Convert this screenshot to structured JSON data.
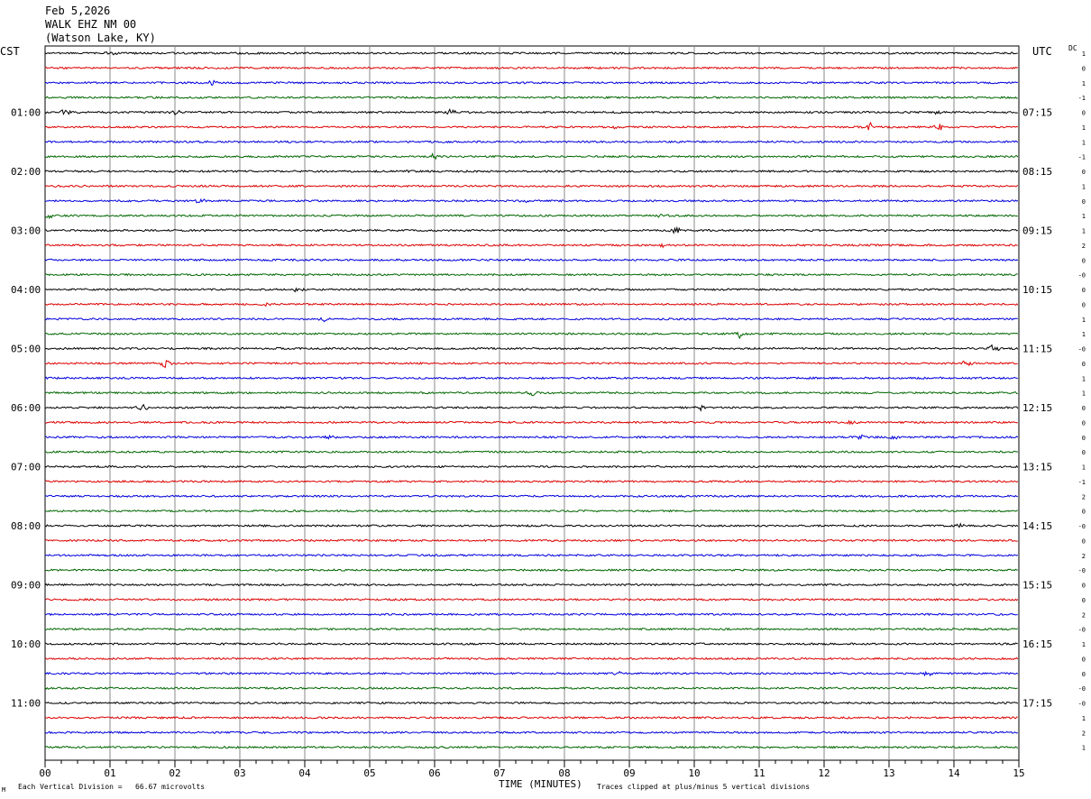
{
  "header": {
    "date": "Feb 5,2026",
    "station": "WALK EHZ NM 00",
    "location": "(Watson Lake, KY)"
  },
  "left_timezone": "CST",
  "right_timezone": "UTC",
  "dc_label": "DC",
  "footer": {
    "scale_note": "Each Vertical Division =   66.67 microvolts",
    "xlabel": "TIME (MINUTES)",
    "clip_note": "Traces clipped at plus/minus 5 vertical divisions",
    "corner_mark": "M"
  },
  "colors": {
    "trace_cycle": [
      "#000000",
      "#dd0000",
      "#0000dd",
      "#006600"
    ],
    "grid": "#888888",
    "frame": "#000000"
  },
  "chart_data": {
    "type": "line",
    "title": "",
    "xlabel": "TIME (MINUTES)",
    "ylabel": "",
    "xlim": [
      0,
      15
    ],
    "x_ticks": [
      "00",
      "01",
      "02",
      "03",
      "04",
      "05",
      "06",
      "07",
      "08",
      "09",
      "10",
      "11",
      "12",
      "13",
      "14",
      "15"
    ],
    "rows": 48,
    "minor_ticks_per_minute": 4,
    "left_hour_labels": [
      {
        "row": 4,
        "label": "01:00"
      },
      {
        "row": 8,
        "label": "02:00"
      },
      {
        "row": 12,
        "label": "03:00"
      },
      {
        "row": 16,
        "label": "04:00"
      },
      {
        "row": 20,
        "label": "05:00"
      },
      {
        "row": 24,
        "label": "06:00"
      },
      {
        "row": 28,
        "label": "07:00"
      },
      {
        "row": 32,
        "label": "08:00"
      },
      {
        "row": 36,
        "label": "09:00"
      },
      {
        "row": 40,
        "label": "10:00"
      },
      {
        "row": 44,
        "label": "11:00"
      }
    ],
    "right_hour_labels": [
      {
        "row": 4,
        "label": "07:15"
      },
      {
        "row": 8,
        "label": "08:15"
      },
      {
        "row": 12,
        "label": "09:15"
      },
      {
        "row": 16,
        "label": "10:15"
      },
      {
        "row": 20,
        "label": "11:15"
      },
      {
        "row": 24,
        "label": "12:15"
      },
      {
        "row": 28,
        "label": "13:15"
      },
      {
        "row": 32,
        "label": "14:15"
      },
      {
        "row": 36,
        "label": "15:15"
      },
      {
        "row": 40,
        "label": "16:15"
      },
      {
        "row": 44,
        "label": "17:15"
      }
    ],
    "dc_offsets": [
      "1",
      "0",
      "1",
      "-1",
      "0",
      "1",
      "1",
      "-1",
      "0",
      "1",
      "0",
      "1",
      "1",
      "2",
      "0",
      "-0",
      "0",
      "0",
      "1",
      "1",
      "-0",
      "0",
      "1",
      "1",
      "0",
      "0",
      "0",
      "0",
      "1",
      "-1",
      "2",
      "0",
      "-0",
      "0",
      "2",
      "-0",
      "0",
      "0",
      "2",
      "-0",
      "1",
      "0",
      "0",
      "-0",
      "-0",
      "1",
      "2",
      "1"
    ],
    "events": [
      {
        "row": 0,
        "minute": 1.0,
        "amp": 2.5
      },
      {
        "row": 2,
        "minute": 2.6,
        "amp": 3.5
      },
      {
        "row": 4,
        "minute": 0.3,
        "amp": 3.5
      },
      {
        "row": 4,
        "minute": 2.0,
        "amp": 3.0
      },
      {
        "row": 4,
        "minute": 6.25,
        "amp": 3.0
      },
      {
        "row": 4,
        "minute": 13.7,
        "amp": 2.5
      },
      {
        "row": 5,
        "minute": 8.8,
        "amp": 3.0
      },
      {
        "row": 5,
        "minute": 12.7,
        "amp": 5.0
      },
      {
        "row": 5,
        "minute": 13.8,
        "amp": 4.5
      },
      {
        "row": 7,
        "minute": 6.0,
        "amp": 3.0
      },
      {
        "row": 8,
        "minute": 5.6,
        "amp": 2.5
      },
      {
        "row": 10,
        "minute": 2.4,
        "amp": 4.0
      },
      {
        "row": 10,
        "minute": 7.4,
        "amp": 3.0
      },
      {
        "row": 11,
        "minute": 0.05,
        "amp": 3.5
      },
      {
        "row": 11,
        "minute": 9.5,
        "amp": 2.5
      },
      {
        "row": 12,
        "minute": 9.7,
        "amp": 3.5
      },
      {
        "row": 13,
        "minute": 9.5,
        "amp": 3.0
      },
      {
        "row": 16,
        "minute": 3.9,
        "amp": 3.5
      },
      {
        "row": 17,
        "minute": 3.4,
        "amp": 2.5
      },
      {
        "row": 18,
        "minute": 4.3,
        "amp": 3.0
      },
      {
        "row": 19,
        "minute": 10.7,
        "amp": 4.0
      },
      {
        "row": 20,
        "minute": 14.6,
        "amp": 4.0
      },
      {
        "row": 21,
        "minute": 1.85,
        "amp": 4.5
      },
      {
        "row": 21,
        "minute": 14.2,
        "amp": 4.5
      },
      {
        "row": 23,
        "minute": 7.5,
        "amp": 4.0
      },
      {
        "row": 24,
        "minute": 1.5,
        "amp": 3.5
      },
      {
        "row": 24,
        "minute": 10.1,
        "amp": 2.5
      },
      {
        "row": 25,
        "minute": 12.4,
        "amp": 3.5
      },
      {
        "row": 26,
        "minute": 4.4,
        "amp": 3.0
      },
      {
        "row": 26,
        "minute": 12.6,
        "amp": 3.5
      },
      {
        "row": 26,
        "minute": 13.1,
        "amp": 3.0
      },
      {
        "row": 32,
        "minute": 14.1,
        "amp": 2.0
      },
      {
        "row": 42,
        "minute": 8.8,
        "amp": 2.5
      },
      {
        "row": 42,
        "minute": 13.6,
        "amp": 3.0
      }
    ]
  }
}
